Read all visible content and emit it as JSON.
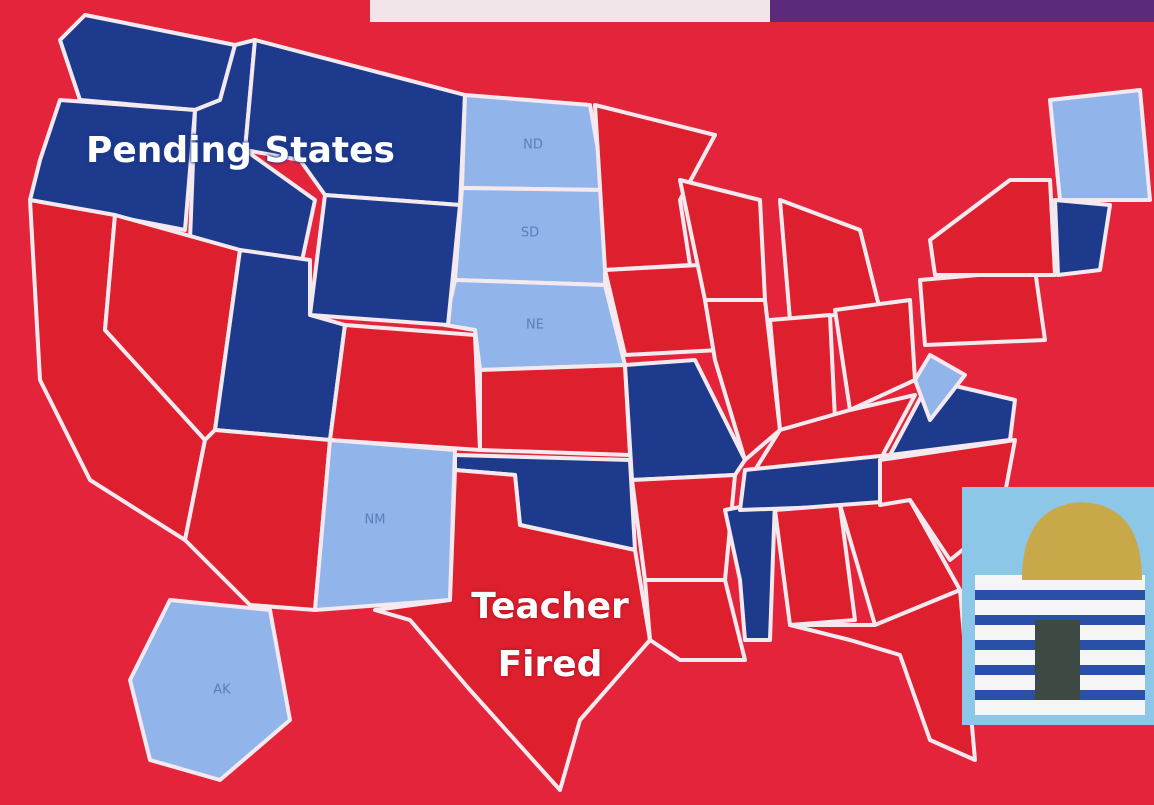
{
  "map": {
    "labels": {
      "pending": "Pending States",
      "fired": "Teacher Fired"
    },
    "state_abbreviations": [
      "ND",
      "SD",
      "NE",
      "NM",
      "AK"
    ]
  }
}
